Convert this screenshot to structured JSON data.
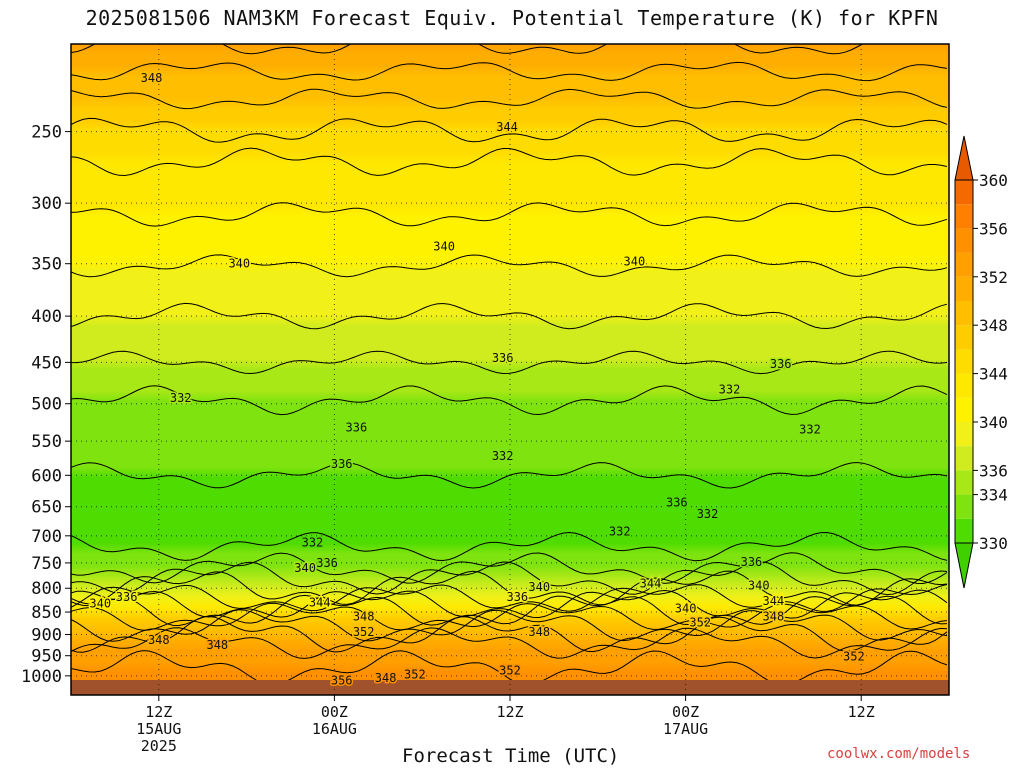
{
  "chart_data": {
    "type": "contour",
    "title": "2025081506 NAM3KM Forecast Equiv. Potential Temperature (K) for KPFN",
    "xlabel": "Forecast Time (UTC)",
    "ylabel": "",
    "y_scale": "log",
    "y_reversed": true,
    "ylim": [
      200,
      1050
    ],
    "y_ticks": [
      250,
      300,
      350,
      400,
      450,
      500,
      550,
      600,
      650,
      700,
      750,
      800,
      850,
      900,
      950,
      1000
    ],
    "x_range_hours": [
      6,
      66
    ],
    "x_ticks": [
      {
        "hour": 12,
        "lines": [
          "12Z",
          "15AUG",
          "2025"
        ]
      },
      {
        "hour": 24,
        "lines": [
          "00Z",
          "16AUG"
        ]
      },
      {
        "hour": 36,
        "lines": [
          "12Z"
        ]
      },
      {
        "hour": 48,
        "lines": [
          "00Z",
          "17AUG"
        ]
      },
      {
        "hour": 60,
        "lines": [
          "12Z"
        ]
      }
    ],
    "grid": true,
    "colorbar": {
      "ticks": [
        330,
        334,
        336,
        340,
        344,
        348,
        352,
        356,
        360
      ],
      "bands": [
        {
          "from": 330,
          "to": 332,
          "color": "#4fdc00"
        },
        {
          "from": 332,
          "to": 334,
          "color": "#7ee30e"
        },
        {
          "from": 334,
          "to": 336,
          "color": "#a7e816"
        },
        {
          "from": 336,
          "to": 338,
          "color": "#d0ec1e"
        },
        {
          "from": 338,
          "to": 340,
          "color": "#f1f018"
        },
        {
          "from": 340,
          "to": 342,
          "color": "#fff200"
        },
        {
          "from": 342,
          "to": 344,
          "color": "#ffe800"
        },
        {
          "from": 344,
          "to": 346,
          "color": "#ffdc00"
        },
        {
          "from": 346,
          "to": 348,
          "color": "#ffcc00"
        },
        {
          "from": 348,
          "to": 350,
          "color": "#ffbe00"
        },
        {
          "from": 350,
          "to": 352,
          "color": "#ffae00"
        },
        {
          "from": 352,
          "to": 354,
          "color": "#ff9f00"
        },
        {
          "from": 354,
          "to": 356,
          "color": "#ff9000"
        },
        {
          "from": 356,
          "to": 358,
          "color": "#ff8000"
        },
        {
          "from": 358,
          "to": 360,
          "color": "#f56a00"
        }
      ],
      "under_color": "#40d000",
      "over_color": "#e85a00"
    },
    "contour_profile": [
      {
        "p": 200,
        "theta": 352
      },
      {
        "p": 230,
        "theta": 348
      },
      {
        "p": 270,
        "theta": 344
      },
      {
        "p": 330,
        "theta": 341
      },
      {
        "p": 400,
        "theta": 338
      },
      {
        "p": 450,
        "theta": 336
      },
      {
        "p": 520,
        "theta": 333
      },
      {
        "p": 600,
        "theta": 332
      },
      {
        "p": 700,
        "theta": 331
      },
      {
        "p": 760,
        "theta": 334
      },
      {
        "p": 820,
        "theta": 340
      },
      {
        "p": 860,
        "theta": 346
      },
      {
        "p": 920,
        "theta": 352
      },
      {
        "p": 980,
        "theta": 354
      },
      {
        "p": 1050,
        "theta": 355
      }
    ],
    "contour_labels": [
      {
        "text": "348",
        "hour": 11.5,
        "p": 218
      },
      {
        "text": "344",
        "hour": 35.8,
        "p": 247
      },
      {
        "text": "340",
        "hour": 17.5,
        "p": 350
      },
      {
        "text": "340",
        "hour": 31.5,
        "p": 335
      },
      {
        "text": "340",
        "hour": 44.5,
        "p": 348
      },
      {
        "text": "336",
        "hour": 35.5,
        "p": 445
      },
      {
        "text": "336",
        "hour": 54.5,
        "p": 452
      },
      {
        "text": "336",
        "hour": 25.5,
        "p": 531
      },
      {
        "text": "336",
        "hour": 24.5,
        "p": 583
      },
      {
        "text": "336",
        "hour": 47.4,
        "p": 643
      },
      {
        "text": "336",
        "hour": 52.5,
        "p": 748
      },
      {
        "text": "336",
        "hour": 23.5,
        "p": 750
      },
      {
        "text": "336",
        "hour": 9.8,
        "p": 818
      },
      {
        "text": "336",
        "hour": 36.5,
        "p": 818
      },
      {
        "text": "332",
        "hour": 13.5,
        "p": 493
      },
      {
        "text": "332",
        "hour": 35.5,
        "p": 571
      },
      {
        "text": "332",
        "hour": 51,
        "p": 482
      },
      {
        "text": "332",
        "hour": 56.5,
        "p": 534
      },
      {
        "text": "332",
        "hour": 49.5,
        "p": 662
      },
      {
        "text": "332",
        "hour": 43.5,
        "p": 692
      },
      {
        "text": "332",
        "hour": 22.5,
        "p": 712
      },
      {
        "text": "340",
        "hour": 22,
        "p": 760
      },
      {
        "text": "340",
        "hour": 8,
        "p": 832
      },
      {
        "text": "340",
        "hour": 38,
        "p": 797
      },
      {
        "text": "340",
        "hour": 48,
        "p": 842
      },
      {
        "text": "340",
        "hour": 53,
        "p": 794
      },
      {
        "text": "344",
        "hour": 45.6,
        "p": 790
      },
      {
        "text": "344",
        "hour": 23,
        "p": 830
      },
      {
        "text": "344",
        "hour": 54,
        "p": 826
      },
      {
        "text": "348",
        "hour": 26,
        "p": 860
      },
      {
        "text": "348",
        "hour": 54,
        "p": 860
      },
      {
        "text": "348",
        "hour": 38,
        "p": 894
      },
      {
        "text": "348",
        "hour": 12,
        "p": 913
      },
      {
        "text": "348",
        "hour": 16,
        "p": 925
      },
      {
        "text": "348",
        "hour": 27.5,
        "p": 1006
      },
      {
        "text": "352",
        "hour": 26,
        "p": 894
      },
      {
        "text": "352",
        "hour": 49,
        "p": 873
      },
      {
        "text": "352",
        "hour": 59.5,
        "p": 952
      },
      {
        "text": "352",
        "hour": 36,
        "p": 986
      },
      {
        "text": "352",
        "hour": 29.5,
        "p": 996
      },
      {
        "text": "356",
        "hour": 24.5,
        "p": 1012
      }
    ]
  },
  "credit": "coolwx.com/models"
}
